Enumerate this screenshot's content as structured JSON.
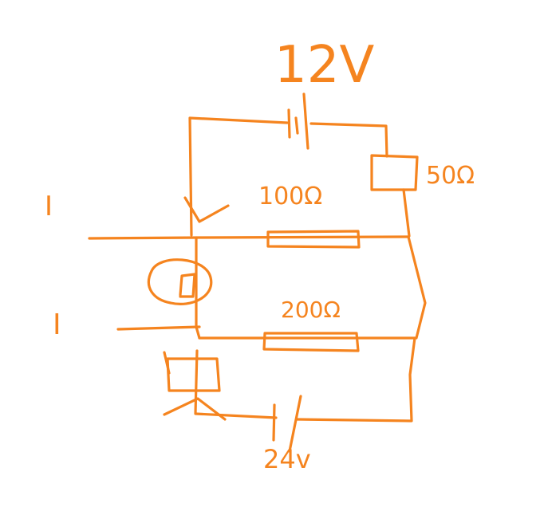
{
  "diagram": {
    "ink_color": "#f5841f",
    "labels": {
      "top_battery": "12V",
      "bottom_battery": "24v",
      "resistor_top_right": "50Ω",
      "resistor_middle": "100Ω",
      "resistor_lower": "200Ω",
      "current_top": "I",
      "current_bottom": "I"
    }
  }
}
